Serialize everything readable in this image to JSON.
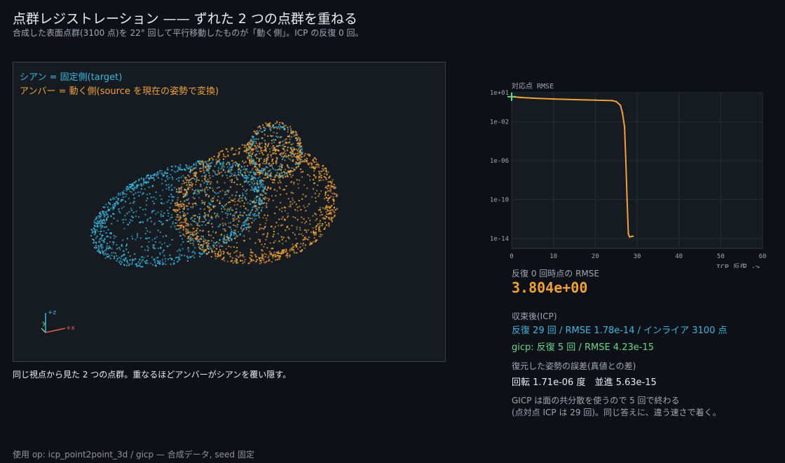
{
  "header": {
    "title": "点群レジストレーション —— ずれた 2 つの点群を重ねる",
    "subtitle": "合成した表面点群(3100 点)を 22° 回して平行移動したものが「動く側」。ICP の反復  0 回。"
  },
  "viewport": {
    "legend_target": "シアン = 固定側(target)",
    "legend_source": "アンバー = 動く側(source を現在の姿勢で変換)",
    "caption": "同じ視点から見た 2 つの点群。重なるほどアンバーがシアンを覆い隠す。",
    "axis_labels": {
      "z": "+z",
      "y": "+y",
      "x": "+x"
    },
    "colors": {
      "target": "#3ab7e0",
      "source": "#f0a13a"
    }
  },
  "chart_data": {
    "type": "line",
    "title": "対応点 RMSE",
    "xlabel": "ICP 反復 ->",
    "ylabel": "",
    "y_scale": "log",
    "xlim": [
      0,
      60
    ],
    "ylim": [
      1e-15,
      10
    ],
    "x_ticks": [
      0,
      10,
      20,
      30,
      40,
      50,
      60
    ],
    "y_ticks": [
      {
        "value": 10,
        "label": "1e+01"
      },
      {
        "value": 0.01,
        "label": "1e-02"
      },
      {
        "value": 1e-06,
        "label": "1e-06"
      },
      {
        "value": 1e-10,
        "label": "1e-10"
      },
      {
        "value": 1e-14,
        "label": "1e-14"
      }
    ],
    "series": [
      {
        "color": "#f0a13a",
        "x": [
          0,
          2,
          5,
          10,
          15,
          20,
          24,
          25,
          26,
          26.5,
          27,
          27.3,
          27.6,
          27.9,
          28.2,
          29
        ],
        "y": [
          3.804,
          3.2,
          2.7,
          2.2,
          1.9,
          1.7,
          1.5,
          1.2,
          0.5,
          0.08,
          0.003,
          1e-06,
          1e-10,
          3e-14,
          1.5e-14,
          1.78e-14
        ]
      }
    ],
    "marker": {
      "x": 0,
      "y": 3.804,
      "color": "#6bd68a"
    }
  },
  "stats": {
    "initial_label": "反復 0 回時点の RMSE",
    "initial_value": "3.804e+00",
    "converged_label": "収束後(ICP)",
    "icp_result": "反復 29 回 / RMSE 1.78e-14 / インライア 3100 点",
    "gicp_result": "gicp: 反復 5 回 / RMSE 4.23e-15",
    "pose_error_label": "復元した姿勢の誤差(真値との差)",
    "pose_error": "回転 1.71e-06 度　並進 5.63e-15",
    "note_line1": "GICP は面の共分散を使うので 5 回で終わる",
    "note_line2": "(点対点 ICP は 29 回)。同じ答えに、違う速さで着く。"
  },
  "footer": {
    "text": "使用 op: icp_point2point_3d / gicp  — 合成データ, seed 固定"
  }
}
